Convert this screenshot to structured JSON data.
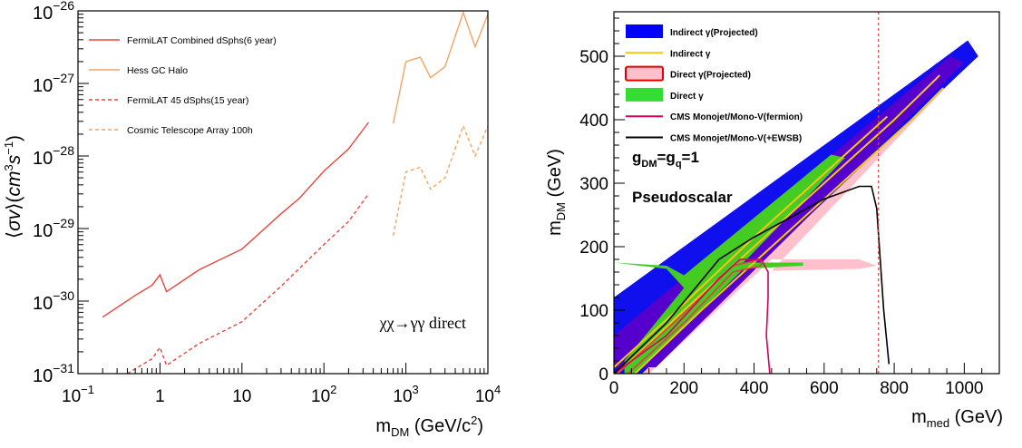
{
  "chart_data": [
    {
      "type": "line",
      "xlabel": "m_DM (GeV/c²)",
      "ylabel": "⟨σv⟩(cm³s⁻¹)",
      "xscale": "log",
      "yscale": "log",
      "xlim": [
        0.1,
        10000
      ],
      "ylim": [
        1e-31,
        1e-26
      ],
      "x_ticks": [
        {
          "value": 0.1,
          "base": "10",
          "exp": "−1"
        },
        {
          "value": 1,
          "text": "1"
        },
        {
          "value": 10,
          "text": "10"
        },
        {
          "value": 100,
          "base": "10",
          "exp": "2"
        },
        {
          "value": 1000,
          "base": "10",
          "exp": "3"
        },
        {
          "value": 10000,
          "base": "10",
          "exp": "4"
        }
      ],
      "y_ticks": [
        {
          "value": 1e-31,
          "base": "10",
          "exp": "−31"
        },
        {
          "value": 1e-30,
          "base": "10",
          "exp": "−30"
        },
        {
          "value": 1e-29,
          "base": "10",
          "exp": "−29"
        },
        {
          "value": 1e-28,
          "base": "10",
          "exp": "−28"
        },
        {
          "value": 1e-27,
          "base": "10",
          "exp": "−27"
        },
        {
          "value": 1e-26,
          "base": "10",
          "exp": "−26"
        }
      ],
      "grid": false,
      "legend_position": "top-left",
      "annotation": "χχ→γγ direct",
      "series": [
        {
          "name": "FermiLAT Combined dSphs(6 year)",
          "color": "#e8463c",
          "dash": "solid",
          "points": [
            [
              0.2,
              6e-31
            ],
            [
              0.5,
              1.2e-30
            ],
            [
              0.8,
              1.65e-30
            ],
            [
              1,
              2.3e-30
            ],
            [
              1.2,
              1.35e-30
            ],
            [
              3,
              2.7e-30
            ],
            [
              10,
              5.2e-30
            ],
            [
              30,
              1.6e-29
            ],
            [
              50,
              2.6e-29
            ],
            [
              100,
              6.2e-29
            ],
            [
              200,
              1.25e-28
            ],
            [
              350,
              2.9e-28
            ]
          ]
        },
        {
          "name": "Hess GC Halo",
          "color": "#f4a460",
          "dash": "solid",
          "points": [
            [
              700,
              2.8e-28
            ],
            [
              1000,
              2e-27
            ],
            [
              1500,
              2.3e-27
            ],
            [
              2000,
              1.2e-27
            ],
            [
              3000,
              1.7e-27
            ],
            [
              5000,
              9.5e-27
            ],
            [
              7000,
              3.2e-27
            ],
            [
              10000,
              9e-27
            ]
          ]
        },
        {
          "name": "FermiLAT 45 dSphs(15 year)",
          "color": "#e8463c",
          "dash": "dashed",
          "points": [
            [
              0.4,
              1e-31
            ],
            [
              0.8,
              1.6e-31
            ],
            [
              1,
              2.3e-31
            ],
            [
              1.2,
              1.3e-31
            ],
            [
              3,
              2.6e-31
            ],
            [
              10,
              5.2e-31
            ],
            [
              30,
              1.6e-30
            ],
            [
              100,
              6e-30
            ],
            [
              200,
              1.25e-29
            ],
            [
              350,
              3e-29
            ]
          ]
        },
        {
          "name": "Cosmic Telescope Array 100h",
          "color": "#f4a460",
          "dash": "dashed",
          "points": [
            [
              700,
              8e-30
            ],
            [
              1000,
              6e-29
            ],
            [
              1500,
              7e-29
            ],
            [
              2000,
              3.5e-29
            ],
            [
              3000,
              5e-29
            ],
            [
              5000,
              2.6e-28
            ],
            [
              7000,
              1e-28
            ],
            [
              10000,
              2.6e-28
            ]
          ]
        }
      ]
    },
    {
      "type": "area",
      "xlabel": "m_med (GeV)",
      "ylabel": "m_DM (GeV)",
      "xlim": [
        0,
        1100
      ],
      "ylim": [
        0,
        570
      ],
      "x_ticks": [
        0,
        200,
        400,
        600,
        800,
        1000
      ],
      "y_ticks": [
        0,
        100,
        200,
        300,
        400,
        500
      ],
      "grid": false,
      "legend_position": "top-left",
      "annotations": {
        "coupling_base": "g",
        "coupling_sub1": "DM",
        "coupling_mid": "=g",
        "coupling_sub2": "q",
        "coupling_end": "=1",
        "model": "Pseudoscalar"
      },
      "legend": [
        {
          "label": "Indirect γ(Projected)",
          "color": "#0000ff",
          "kind": "box"
        },
        {
          "label": "Indirect γ",
          "color": "#f5c518",
          "kind": "line"
        },
        {
          "label": "Direct γ(Projected)",
          "color": "#ffc0cb",
          "edge": "#e00000",
          "kind": "box"
        },
        {
          "label": "Direct γ",
          "color": "#33dd33",
          "kind": "box"
        },
        {
          "label": "CMS Monojet/Mono-V(fermion)",
          "color": "#d6005c",
          "kind": "line"
        },
        {
          "label": "CMS Monojet/Mono-V(+EWSB)",
          "color": "#000000",
          "kind": "line"
        }
      ],
      "regions": [
        {
          "name": "Direct γ(Projected)",
          "color": "#ffc0cb",
          "points": [
            [
              10,
              0
            ],
            [
              100,
              0
            ],
            [
              450,
              180
            ],
            [
              700,
              180
            ],
            [
              750,
              170
            ],
            [
              700,
              165
            ],
            [
              450,
              162
            ],
            [
              980,
              470
            ],
            [
              920,
              490
            ],
            [
              300,
              160
            ],
            [
              40,
              120
            ],
            [
              0,
              110
            ],
            [
              0,
              20
            ]
          ]
        },
        {
          "name": "Indirect γ(Projected) outer",
          "color": "#1010ee",
          "points": [
            [
              0,
              0
            ],
            [
              80,
              0
            ],
            [
              1040,
              500
            ],
            [
              1010,
              525
            ],
            [
              900,
              480
            ],
            [
              0,
              120
            ]
          ]
        },
        {
          "name": "Indirect γ(Projected) inner",
          "color": "#5500cc",
          "points": [
            [
              0,
              10
            ],
            [
              120,
              10
            ],
            [
              1000,
              490
            ],
            [
              960,
              500
            ],
            [
              0,
              60
            ]
          ]
        },
        {
          "name": "Direct γ",
          "color": "#44cc22",
          "points": [
            [
              30,
              0
            ],
            [
              60,
              0
            ],
            [
              370,
              165
            ],
            [
              540,
              170
            ],
            [
              540,
              175
            ],
            [
              370,
              175
            ],
            [
              660,
              340
            ],
            [
              620,
              345
            ],
            [
              200,
              155
            ],
            [
              150,
              170
            ],
            [
              0,
              175
            ],
            [
              150,
              165
            ],
            [
              200,
              135
            ],
            [
              30,
              20
            ]
          ]
        }
      ],
      "curves": [
        {
          "name": "Indirect γ",
          "color": "#f5c518",
          "points": [
            [
              10,
              0
            ],
            [
              200,
              100
            ],
            [
              400,
              200
            ],
            [
              600,
              300
            ],
            [
              800,
              400
            ],
            [
              930,
              470
            ]
          ]
        },
        {
          "name": "Indirect γ",
          "color": "#f5c518",
          "points": [
            [
              60,
              0
            ],
            [
              250,
              100
            ],
            [
              450,
              200
            ],
            [
              650,
              300
            ],
            [
              850,
              400
            ],
            [
              940,
              450
            ]
          ]
        },
        {
          "name": "Indirect γ",
          "color": "#f5c518",
          "points": [
            [
              0,
              10
            ],
            [
              200,
              110
            ],
            [
              400,
              215
            ],
            [
              600,
              315
            ],
            [
              780,
              405
            ]
          ]
        },
        {
          "name": "Direct γ",
          "color": "#e04040",
          "points": [
            [
              10,
              0
            ],
            [
              200,
              95
            ],
            [
              340,
              170
            ],
            [
              420,
              180
            ],
            [
              420,
              170
            ],
            [
              340,
              160
            ],
            [
              200,
              80
            ],
            [
              40,
              0
            ]
          ]
        },
        {
          "name": "CMS Monojet/Mono-V(fermion)",
          "color": "#d6005c",
          "points": [
            [
              0,
              0
            ],
            [
              150,
              60
            ],
            [
              300,
              150
            ],
            [
              360,
              180
            ],
            [
              420,
              180
            ],
            [
              440,
              160
            ],
            [
              440,
              120
            ],
            [
              435,
              60
            ],
            [
              445,
              0
            ]
          ]
        },
        {
          "name": "CMS Monojet/Mono-V(+EWSB)",
          "color": "#000000",
          "points": [
            [
              0,
              0
            ],
            [
              150,
              80
            ],
            [
              300,
              180
            ],
            [
              400,
              215
            ],
            [
              500,
              245
            ],
            [
              600,
              275
            ],
            [
              700,
              295
            ],
            [
              735,
              295
            ],
            [
              750,
              260
            ],
            [
              770,
              100
            ],
            [
              785,
              15
            ]
          ]
        }
      ],
      "vertical_line": {
        "x": 755,
        "color": "#e04040",
        "dash": "dashed"
      }
    }
  ]
}
